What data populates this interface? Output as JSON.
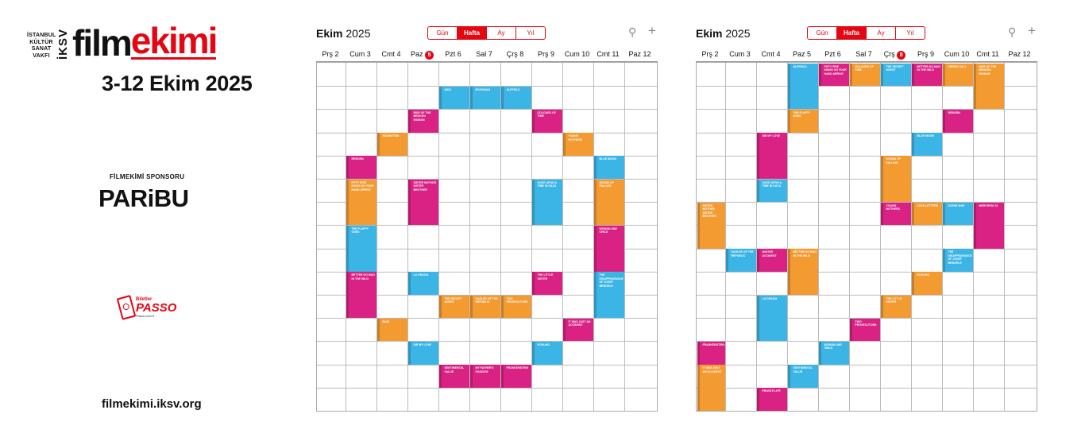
{
  "brand": {
    "line1": "İSTANBUL",
    "line2": "KÜLTÜR",
    "line3": "SANAT",
    "line4": "VAKFI",
    "iksv": "İKSV",
    "film": "film",
    "ekimi": "ekimi"
  },
  "dates": "3-12 Ekim 2025",
  "sponsor": {
    "label": "FİLMEKİMİ SPONSORU",
    "name": "PARiBU"
  },
  "passo": {
    "small": "Biletler",
    "name": "PASSO",
    "sub": "Passo.com.tr"
  },
  "website": "filmekimi.iksv.org",
  "colors": {
    "pink": "#d92283",
    "blue": "#3bb5e6",
    "orange": "#f39a31",
    "accent": "#e30613"
  },
  "calendars": [
    {
      "month_bold": "Ekim",
      "year": "2025",
      "views": [
        "Gün",
        "Hafta",
        "Ay",
        "Yıl"
      ],
      "active_view": "Hafta",
      "icons": [
        "search-icon",
        "plus-icon"
      ],
      "days": [
        "Prş 2",
        "Cum 3",
        "Cmt 4",
        "Paz",
        "Pzt 6",
        "Sal 7",
        "Çrş 8",
        "Prş 9",
        "Cum 10",
        "Cmt 11",
        "Paz 12"
      ],
      "today_index": 3,
      "today_num": "5",
      "events": [
        {
          "col": 1,
          "row": 4,
          "span": 1,
          "color": "pink",
          "title": "Reborn"
        },
        {
          "col": 1,
          "row": 5,
          "span": 2,
          "color": "orange",
          "title": "Fifty Fire Kings On Your Hand Arrive"
        },
        {
          "col": 1,
          "row": 7,
          "span": 2,
          "color": "blue",
          "title": "The Fluffy Ones"
        },
        {
          "col": 1,
          "row": 9,
          "span": 2,
          "color": "pink",
          "title": "Better Go Mad In The Wild"
        },
        {
          "col": 2,
          "row": 3,
          "span": 1,
          "color": "orange",
          "title": "Eddington"
        },
        {
          "col": 2,
          "row": 11,
          "span": 1,
          "color": "orange",
          "title": "Bugi"
        },
        {
          "col": 3,
          "row": 2,
          "span": 1,
          "color": "pink",
          "title": "Rise Of The Broken Woman"
        },
        {
          "col": 3,
          "row": 5,
          "span": 2,
          "color": "pink",
          "title": "Sister Mother Sister Brother"
        },
        {
          "col": 3,
          "row": 9,
          "span": 1,
          "color": "blue",
          "title": "La Grazia"
        },
        {
          "col": 3,
          "row": 12,
          "span": 1,
          "color": "blue",
          "title": "Die My Love"
        },
        {
          "col": 4,
          "row": 1,
          "span": 1,
          "color": "blue",
          "title": "Kiko"
        },
        {
          "col": 4,
          "row": 10,
          "span": 1,
          "color": "orange",
          "title": "The Secret Agent"
        },
        {
          "col": 4,
          "row": 13,
          "span": 1,
          "color": "pink",
          "title": "Sentimental Value"
        },
        {
          "col": 5,
          "row": 1,
          "span": 1,
          "color": "blue",
          "title": "Bookman"
        },
        {
          "col": 5,
          "row": 10,
          "span": 1,
          "color": "orange",
          "title": "Eagles Of The Republic"
        },
        {
          "col": 5,
          "row": 13,
          "span": 1,
          "color": "pink",
          "title": "My Father's Shadow"
        },
        {
          "col": 6,
          "row": 1,
          "span": 1,
          "color": "blue",
          "title": "Alpfield"
        },
        {
          "col": 6,
          "row": 10,
          "span": 1,
          "color": "orange",
          "title": "Two Prosecutors"
        },
        {
          "col": 6,
          "row": 13,
          "span": 1,
          "color": "pink",
          "title": "Frankenstein"
        },
        {
          "col": 7,
          "row": 2,
          "span": 1,
          "color": "pink",
          "title": "Colours Of Time"
        },
        {
          "col": 7,
          "row": 5,
          "span": 2,
          "color": "blue",
          "title": "Once Upon A Time In Gaza"
        },
        {
          "col": 7,
          "row": 9,
          "span": 1,
          "color": "pink",
          "title": "The Little Sister"
        },
        {
          "col": 7,
          "row": 12,
          "span": 1,
          "color": "blue",
          "title": "Kokuho"
        },
        {
          "col": 8,
          "row": 3,
          "span": 1,
          "color": "orange",
          "title": "Young Mothers"
        },
        {
          "col": 8,
          "row": 11,
          "span": 1,
          "color": "pink",
          "title": "It Was Just An Accident"
        },
        {
          "col": 9,
          "row": 4,
          "span": 1,
          "color": "blue",
          "title": "Blue Moon"
        },
        {
          "col": 9,
          "row": 5,
          "span": 2,
          "color": "orange",
          "title": "Sound Of Falling"
        },
        {
          "col": 9,
          "row": 7,
          "span": 2,
          "color": "pink",
          "title": "Woman And Child"
        },
        {
          "col": 9,
          "row": 9,
          "span": 2,
          "color": "blue",
          "title": "The Disappearance Of Josef Mengele"
        }
      ]
    },
    {
      "month_bold": "Ekim",
      "year": "2025",
      "views": [
        "Gün",
        "Hafta",
        "Ay",
        "Yıl"
      ],
      "active_view": "Hafta",
      "icons": [
        "search-icon",
        "plus-icon"
      ],
      "days": [
        "Prş 2",
        "Cum 3",
        "Cmt 4",
        "Paz 5",
        "Pzt 6",
        "Sal 7",
        "Çrş",
        "Prş 9",
        "Cum 10",
        "Cmt 11",
        "Paz 12"
      ],
      "today_index": 6,
      "today_num": "8",
      "events": [
        {
          "col": 0,
          "row": 6,
          "span": 2,
          "color": "orange",
          "title": "Sister Mother Sister Brother"
        },
        {
          "col": 0,
          "row": 12,
          "span": 1,
          "color": "pink",
          "title": "Frankenstein"
        },
        {
          "col": 0,
          "row": 13,
          "span": 2,
          "color": "orange",
          "title": "It Was Just An Accident"
        },
        {
          "col": 1,
          "row": 8,
          "span": 1,
          "color": "blue",
          "title": "Eagles Of The Republic"
        },
        {
          "col": 2,
          "row": 3,
          "span": 2,
          "color": "pink",
          "title": "Die My Love"
        },
        {
          "col": 2,
          "row": 5,
          "span": 1,
          "color": "blue",
          "title": "Once Upon A Time In Gaza"
        },
        {
          "col": 2,
          "row": 8,
          "span": 1,
          "color": "pink",
          "title": "Avatar Accident"
        },
        {
          "col": 2,
          "row": 10,
          "span": 2,
          "color": "blue",
          "title": "La Grazia"
        },
        {
          "col": 2,
          "row": 14,
          "span": 1,
          "color": "pink",
          "title": "Private Life"
        },
        {
          "col": 3,
          "row": 0,
          "span": 2,
          "color": "blue",
          "title": "Alpfield"
        },
        {
          "col": 3,
          "row": 2,
          "span": 1,
          "color": "orange",
          "title": "The Fluffy Ones"
        },
        {
          "col": 3,
          "row": 8,
          "span": 2,
          "color": "orange",
          "title": "Better Go Mad In The Wild"
        },
        {
          "col": 3,
          "row": 13,
          "span": 1,
          "color": "blue",
          "title": "Sentimental Value"
        },
        {
          "col": 4,
          "row": 0,
          "span": 1,
          "color": "pink",
          "title": "Fifty Fire Kings On Your Hand Arrive"
        },
        {
          "col": 4,
          "row": 12,
          "span": 1,
          "color": "blue",
          "title": "Woman And Child"
        },
        {
          "col": 5,
          "row": 0,
          "span": 1,
          "color": "orange",
          "title": "Colours Of Time"
        },
        {
          "col": 5,
          "row": 11,
          "span": 1,
          "color": "pink",
          "title": "Two Prosecutors"
        },
        {
          "col": 6,
          "row": 0,
          "span": 1,
          "color": "blue",
          "title": "The Secret Agent"
        },
        {
          "col": 6,
          "row": 4,
          "span": 2,
          "color": "orange",
          "title": "Sound Of Falling"
        },
        {
          "col": 6,
          "row": 6,
          "span": 1,
          "color": "pink",
          "title": "Young Mothers"
        },
        {
          "col": 6,
          "row": 10,
          "span": 1,
          "color": "orange",
          "title": "The Little Sister"
        },
        {
          "col": 7,
          "row": 0,
          "span": 1,
          "color": "pink",
          "title": "Better Go Mad In The Wild"
        },
        {
          "col": 7,
          "row": 3,
          "span": 1,
          "color": "blue",
          "title": "Blue Moon"
        },
        {
          "col": 7,
          "row": 6,
          "span": 1,
          "color": "orange",
          "title": "Love Letters"
        },
        {
          "col": 7,
          "row": 9,
          "span": 1,
          "color": "orange",
          "title": "Kokuho"
        },
        {
          "col": 8,
          "row": 0,
          "span": 1,
          "color": "orange",
          "title": "Sirens Call"
        },
        {
          "col": 8,
          "row": 2,
          "span": 1,
          "color": "pink",
          "title": "Reborn"
        },
        {
          "col": 8,
          "row": 6,
          "span": 1,
          "color": "blue",
          "title": "Scene Map"
        },
        {
          "col": 8,
          "row": 8,
          "span": 1,
          "color": "blue",
          "title": "The Disappearance Of Josef Mengele"
        },
        {
          "col": 9,
          "row": 0,
          "span": 2,
          "color": "orange",
          "title": "Rise Of The Broken Woman"
        },
        {
          "col": 9,
          "row": 6,
          "span": 2,
          "color": "pink",
          "title": "Mercredi 23"
        }
      ]
    }
  ]
}
